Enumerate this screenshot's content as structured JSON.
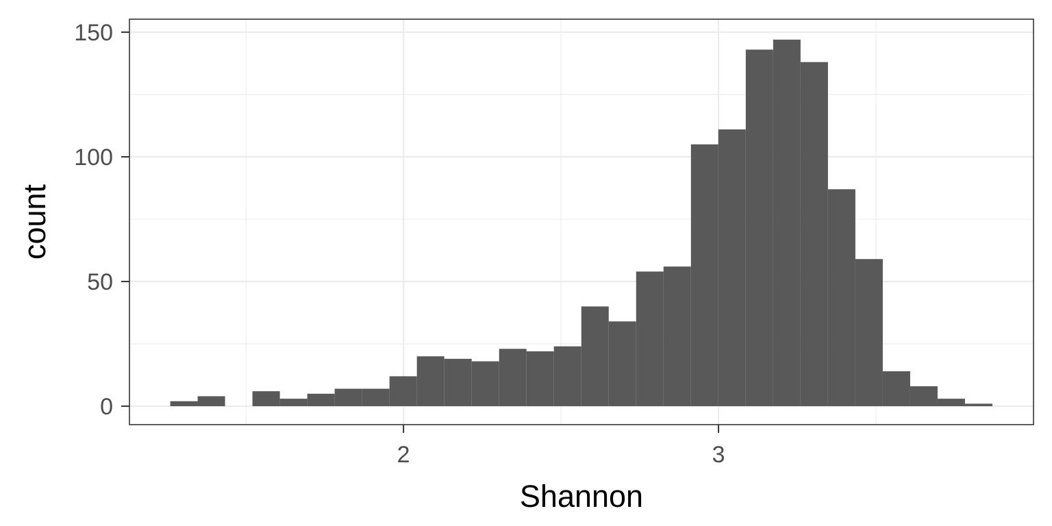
{
  "chart_data": {
    "type": "bar",
    "xlabel": "Shannon",
    "ylabel": "count",
    "xlim": [
      1.13,
      4.0
    ],
    "ylim": [
      -7.4,
      155.2
    ],
    "x_ticks": [
      2,
      3
    ],
    "x_tick_labels": [
      "2",
      "3"
    ],
    "y_ticks": [
      0,
      50,
      100,
      150
    ],
    "y_tick_labels": [
      "0",
      "50",
      "100",
      "150"
    ],
    "bin_width": 0.087,
    "grid": true,
    "bar_color": "#595959",
    "bins": [
      {
        "x": 1.303,
        "count": 2
      },
      {
        "x": 1.39,
        "count": 4
      },
      {
        "x": 1.477,
        "count": 0
      },
      {
        "x": 1.564,
        "count": 6
      },
      {
        "x": 1.651,
        "count": 3
      },
      {
        "x": 1.738,
        "count": 5
      },
      {
        "x": 1.825,
        "count": 7
      },
      {
        "x": 1.912,
        "count": 7
      },
      {
        "x": 1.999,
        "count": 12
      },
      {
        "x": 2.086,
        "count": 20
      },
      {
        "x": 2.173,
        "count": 19
      },
      {
        "x": 2.26,
        "count": 18
      },
      {
        "x": 2.347,
        "count": 23
      },
      {
        "x": 2.434,
        "count": 22
      },
      {
        "x": 2.521,
        "count": 24
      },
      {
        "x": 2.608,
        "count": 40
      },
      {
        "x": 2.695,
        "count": 34
      },
      {
        "x": 2.782,
        "count": 54
      },
      {
        "x": 2.869,
        "count": 56
      },
      {
        "x": 2.956,
        "count": 105
      },
      {
        "x": 3.043,
        "count": 111
      },
      {
        "x": 3.13,
        "count": 143
      },
      {
        "x": 3.217,
        "count": 147
      },
      {
        "x": 3.304,
        "count": 138
      },
      {
        "x": 3.391,
        "count": 87
      },
      {
        "x": 3.478,
        "count": 59
      },
      {
        "x": 3.565,
        "count": 14
      },
      {
        "x": 3.652,
        "count": 8
      },
      {
        "x": 3.739,
        "count": 3
      },
      {
        "x": 3.826,
        "count": 1
      }
    ]
  }
}
